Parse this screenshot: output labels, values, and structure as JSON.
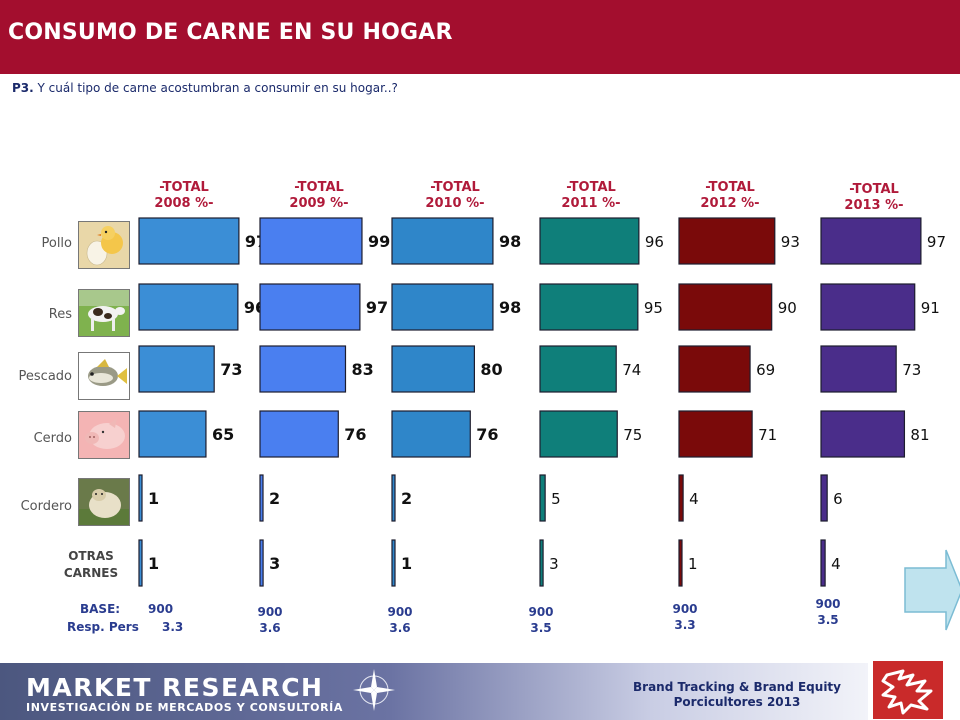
{
  "header": {
    "title": "CONSUMO DE CARNE EN SU HOGAR"
  },
  "question": {
    "code": "P3.",
    "text": " Y cuál  tipo de carne acostumbran  a consumir en su hogar..?"
  },
  "columns": [
    {
      "title_line1": "-TOTAL",
      "title_line2": "2008 %-",
      "title_color": "#b01a3a",
      "bar_color": "#3b8ed6",
      "label_style": "bold",
      "base_value": "900",
      "resp_value": "3.3"
    },
    {
      "title_line1": "-TOTAL",
      "title_line2": "2009 %-",
      "title_color": "#b01a3a",
      "bar_color": "#4a7ff0",
      "label_style": "bold",
      "base_value": "900",
      "resp_value": "3.6"
    },
    {
      "title_line1": "-TOTAL",
      "title_line2": "2010 %-",
      "title_color": "#b01a3a",
      "bar_color": "#2f86c9",
      "label_style": "bold",
      "base_value": "900",
      "resp_value": "3.6"
    },
    {
      "title_line1": "-TOTAL",
      "title_line2": "2011 %-",
      "title_color": "#b01a3a",
      "bar_color": "#0f7f7a",
      "label_style": "normal",
      "base_value": "900",
      "resp_value": "3.5"
    },
    {
      "title_line1": "-TOTAL",
      "title_line2": "2012 %-",
      "title_color": "#b01a3a",
      "bar_color": "#7a0a0a",
      "label_style": "normal",
      "base_value": "900",
      "resp_value": "3.3"
    },
    {
      "title_line1": "-TOTAL",
      "title_line2": "2013 %-",
      "title_color": "#b01a3a",
      "bar_color": "#4a2d8a",
      "label_style": "normal",
      "base_value": "900",
      "resp_value": "3.5"
    }
  ],
  "rows": [
    {
      "label": "Pollo",
      "thumb_icon": "chick-egg-photo"
    },
    {
      "label": "Res",
      "thumb_icon": "cow-photo"
    },
    {
      "label": "Pescado",
      "thumb_icon": "fish-photo"
    },
    {
      "label": "Cerdo",
      "thumb_icon": "pig-photo"
    },
    {
      "label": "Cordero",
      "thumb_icon": "sheep-photo"
    },
    {
      "label_line1": "OTRAS",
      "label_line2": "CARNES"
    }
  ],
  "base": {
    "label": "BASE:",
    "resp_label": "Resp. Pers"
  },
  "chart_data": {
    "type": "bar",
    "orientation": "horizontal",
    "categories": [
      "Pollo",
      "Res",
      "Pescado",
      "Cerdo",
      "Cordero",
      "OTRAS CARNES"
    ],
    "series": [
      {
        "name": "-TOTAL 2008 %-",
        "values": [
          97,
          96,
          73,
          65,
          1,
          1
        ]
      },
      {
        "name": "-TOTAL 2009 %-",
        "values": [
          99,
          97,
          83,
          76,
          2,
          3
        ]
      },
      {
        "name": "-TOTAL 2010 %-",
        "values": [
          98,
          98,
          80,
          76,
          2,
          1
        ]
      },
      {
        "name": "-TOTAL 2011 %-",
        "values": [
          96,
          95,
          74,
          75,
          5,
          3
        ]
      },
      {
        "name": "-TOTAL 2012 %-",
        "values": [
          93,
          90,
          69,
          71,
          4,
          1
        ]
      },
      {
        "name": "-TOTAL 2013 %-",
        "values": [
          97,
          91,
          73,
          81,
          6,
          4
        ]
      }
    ],
    "xlim": [
      0,
      100
    ],
    "grid": false,
    "legend": "none"
  },
  "footer": {
    "logo_main": "MARKET RESEARCH",
    "logo_sub": "INVESTIGACIÓN DE MERCADOS Y CONSULTORÍA",
    "brand_line1": "Brand Tracking & Brand Equity",
    "brand_line2": "Porcicultores 2013"
  }
}
